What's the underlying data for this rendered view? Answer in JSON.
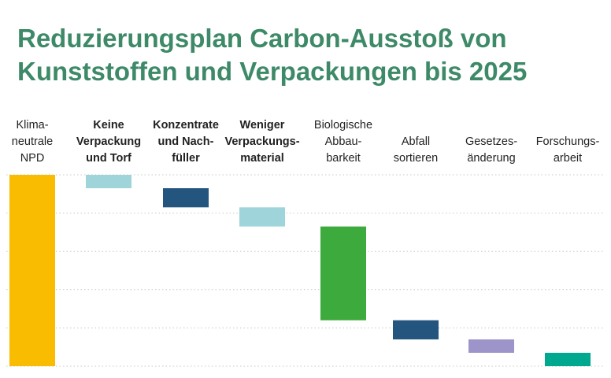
{
  "title_lines": [
    "Reduzierungsplan Carbon-Ausstoß von",
    "Kunststoffen und Verpackungen bis 2025"
  ],
  "chart_data": {
    "type": "waterfall",
    "title": "Reduzierungsplan Carbon-Ausstoß von Kunststoffen und Verpackungen bis 2025",
    "grid": true,
    "ylim": [
      0,
      100
    ],
    "categories": [
      {
        "lines": [
          "Klima-",
          "neutrale",
          "NPD"
        ],
        "bold": false
      },
      {
        "lines": [
          "Keine",
          "Verpackung",
          "und Torf"
        ],
        "bold": true
      },
      {
        "lines": [
          "Konzentrate",
          "und Nach-",
          "füller"
        ],
        "bold": true
      },
      {
        "lines": [
          "Weniger",
          "Verpackungs-",
          "material"
        ],
        "bold": true
      },
      {
        "lines": [
          "Biologische",
          "Abbau-",
          "barkeit"
        ],
        "bold": false
      },
      {
        "lines": [
          "Abfall",
          "sortieren"
        ],
        "bold": false
      },
      {
        "lines": [
          "Gesetzes-",
          "änderung"
        ],
        "bold": false
      },
      {
        "lines": [
          "Forschungs-",
          "arbeit"
        ],
        "bold": false
      }
    ],
    "bars": [
      {
        "low": 0,
        "high": 100,
        "color": "#f9bc00"
      },
      {
        "low": 93,
        "high": 100,
        "color": "#9fd4da"
      },
      {
        "low": 83,
        "high": 93,
        "color": "#23557f"
      },
      {
        "low": 73,
        "high": 83,
        "color": "#9fd4da"
      },
      {
        "low": 24,
        "high": 73,
        "color": "#3caa3c"
      },
      {
        "low": 14,
        "high": 24,
        "color": "#23557f"
      },
      {
        "low": 7,
        "high": 14,
        "color": "#9d94c9"
      },
      {
        "low": 0,
        "high": 7,
        "color": "#00a88f"
      }
    ],
    "grid_values": [
      0,
      20,
      40,
      60,
      80,
      100
    ]
  }
}
